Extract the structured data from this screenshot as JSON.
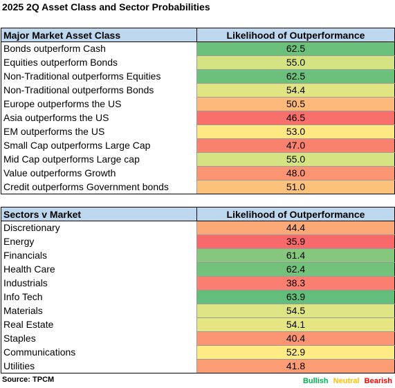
{
  "title": "2025 2Q Asset Class and Sector Probabilities",
  "colors": {
    "green_strong": "#63be7b",
    "green_light": "#9fce7f",
    "yellow_green": "#d9e382",
    "yellow": "#fde981",
    "orange": "#fcb57a",
    "orange_light": "#fca276",
    "red": "#f8696b",
    "header_bg": "#bdd7ee",
    "bullish": "#00b050",
    "neutral": "#ffc000",
    "bearish": "#ff0000"
  },
  "asset_table": {
    "col1": "Major Market Asset Class",
    "col2": "Likelihood of Outperformance",
    "rows": [
      {
        "label": "Bonds outperform Cash",
        "value": "62.5",
        "color": "#6bc07c"
      },
      {
        "label": "Equities outperform Bonds",
        "value": "55.0",
        "color": "#d6e383"
      },
      {
        "label": "Non-Traditional outperforms Equities",
        "value": "62.5",
        "color": "#6bc07c"
      },
      {
        "label": "Non-Traditional outperforms Bonds",
        "value": "54.4",
        "color": "#e0e483"
      },
      {
        "label": "Europe outperforms the US",
        "value": "50.5",
        "color": "#fcb97a"
      },
      {
        "label": "Asia outperforms the US",
        "value": "46.5",
        "color": "#f8706c"
      },
      {
        "label": "EM outperforms the US",
        "value": "53.0",
        "color": "#fde883"
      },
      {
        "label": "Small Cap outperforms Large Cap",
        "value": "47.0",
        "color": "#f9826f"
      },
      {
        "label": "Mid Cap outperforms Large cap",
        "value": "55.0",
        "color": "#d6e383"
      },
      {
        "label": "Value outperforms Growth",
        "value": "48.0",
        "color": "#fa9472"
      },
      {
        "label": "Credit outperforms Government bonds",
        "value": "51.0",
        "color": "#fcc27b"
      }
    ]
  },
  "sector_table": {
    "col1": "Sectors v Market",
    "col2": "Likelihood of Outperformance",
    "rows": [
      {
        "label": "Discretionary",
        "value": "44.4",
        "color": "#fca877"
      },
      {
        "label": "Energy",
        "value": "35.9",
        "color": "#f8696b"
      },
      {
        "label": "Financials",
        "value": "61.4",
        "color": "#85c87d"
      },
      {
        "label": "Health Care",
        "value": "62.4",
        "color": "#72c27c"
      },
      {
        "label": "Industrials",
        "value": "38.3",
        "color": "#f98070"
      },
      {
        "label": "Info Tech",
        "value": "63.9",
        "color": "#63be7b"
      },
      {
        "label": "Materials",
        "value": "54.5",
        "color": "#dde483"
      },
      {
        "label": "Real Estate",
        "value": "54.1",
        "color": "#e6e583"
      },
      {
        "label": "Staples",
        "value": "40.4",
        "color": "#fa9473"
      },
      {
        "label": "Communications",
        "value": "52.9",
        "color": "#feeb84"
      },
      {
        "label": "Utilities",
        "value": "41.8",
        "color": "#fb9c74"
      }
    ]
  },
  "source": "Source: TPCM",
  "legend": {
    "bullish": "Bullish",
    "neutral": "Neutral",
    "bearish": "Bearish"
  }
}
